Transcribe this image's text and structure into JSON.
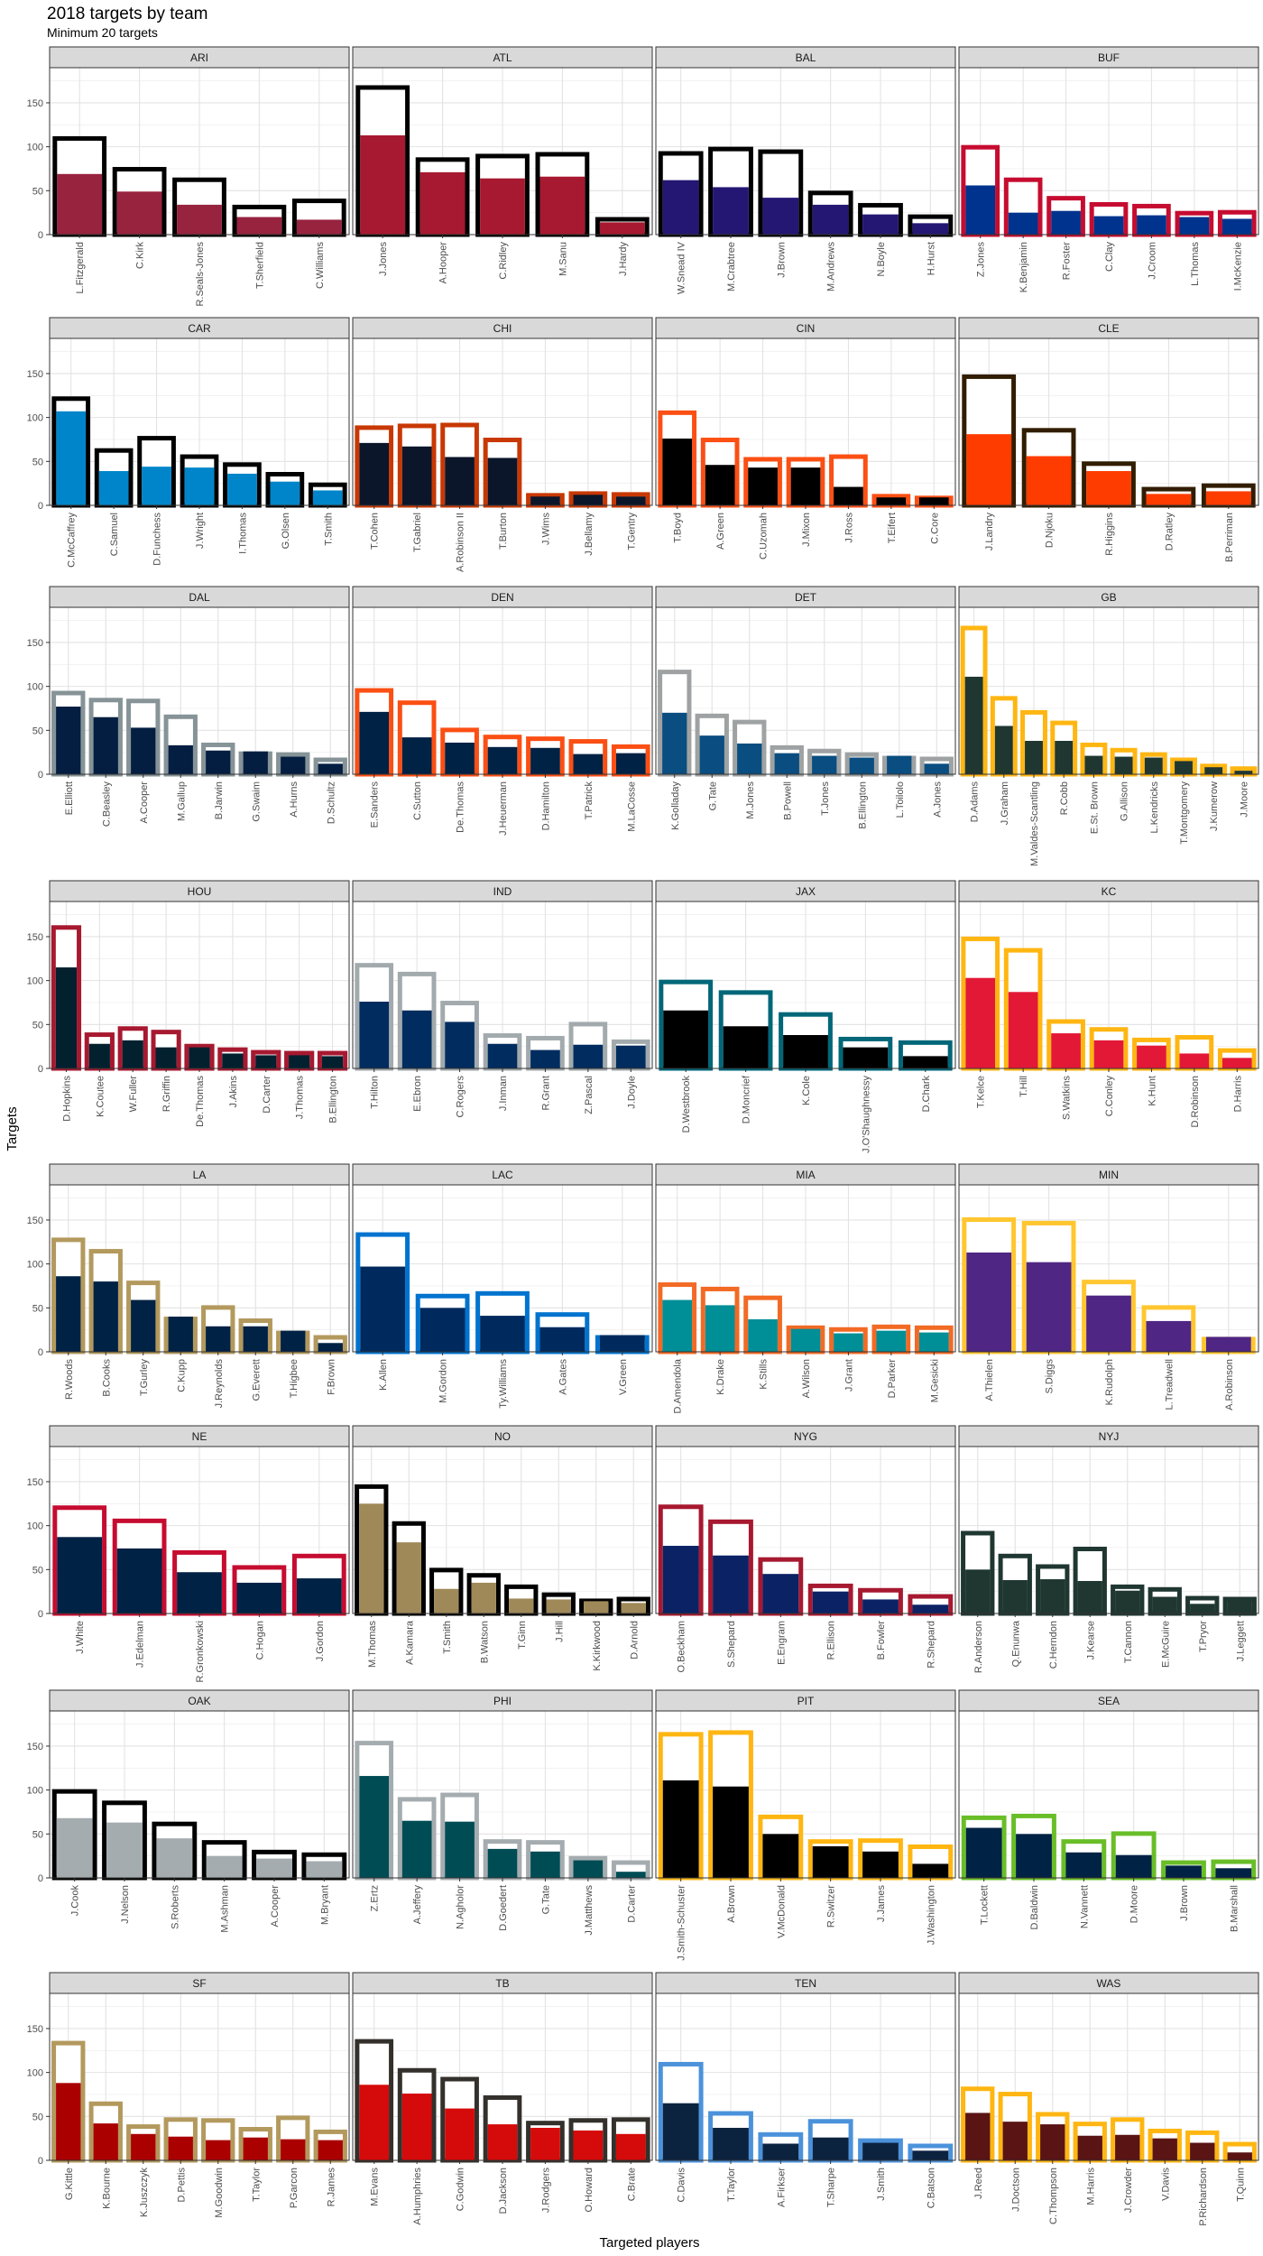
{
  "title": "2018 targets by team",
  "subtitle": "Minimum 20 targets",
  "xlabel": "Targeted players",
  "ylabel": "Targets",
  "chart_data": {
    "type": "bar",
    "description_of_encoding": "Faceted grouped bars per team. Outer outlined bar = total targets; inner filled bar = completed (receptions).",
    "ylim": [
      0,
      190
    ],
    "yticks": [
      0,
      50,
      100,
      150
    ],
    "grid": true,
    "panels": [
      {
        "team": "ARI",
        "fill": "#97233F",
        "outline": "#000000",
        "players": [
          "L.Fitzgerald",
          "C.Kirk",
          "R.Seals-Jones",
          "T.Sherfield",
          "C.Williams"
        ],
        "targets": [
          112,
          77,
          65,
          34,
          41
        ],
        "receptions": [
          69,
          49,
          34,
          20,
          17
        ]
      },
      {
        "team": "ATL",
        "fill": "#A71930",
        "outline": "#000000",
        "players": [
          "J.Jones",
          "A.Hooper",
          "C.Ridley",
          "M.Sanu",
          "J.Hardy"
        ],
        "targets": [
          170,
          88,
          92,
          94,
          20
        ],
        "receptions": [
          113,
          71,
          64,
          66,
          14
        ]
      },
      {
        "team": "BAL",
        "fill": "#241773",
        "outline": "#000000",
        "players": [
          "W.Snead IV",
          "M.Crabtree",
          "J.Brown",
          "M.Andrews",
          "N.Boyle",
          "H.Hurst"
        ],
        "targets": [
          95,
          100,
          97,
          50,
          36,
          23
        ],
        "receptions": [
          62,
          54,
          42,
          34,
          23,
          13
        ]
      },
      {
        "team": "BUF",
        "fill": "#00338D",
        "outline": "#C60C30",
        "players": [
          "Z.Jones",
          "K.Benjamin",
          "R.Foster",
          "C.Clay",
          "J.Croom",
          "L.Thomas",
          "I.McKenzie"
        ],
        "targets": [
          102,
          65,
          44,
          37,
          35,
          27,
          28
        ],
        "receptions": [
          56,
          25,
          27,
          21,
          22,
          20,
          18
        ]
      },
      {
        "team": "CAR",
        "fill": "#0085CA",
        "outline": "#000000",
        "players": [
          "C.McCaffrey",
          "C.Samuel",
          "D.Funchess",
          "J.Wright",
          "I.Thomas",
          "G.Olsen",
          "T.Smith"
        ],
        "targets": [
          124,
          65,
          79,
          58,
          49,
          38,
          26
        ],
        "receptions": [
          107,
          39,
          44,
          43,
          36,
          27,
          17
        ]
      },
      {
        "team": "CHI",
        "fill": "#0B162A",
        "outline": "#C83803",
        "players": [
          "T.Cohen",
          "T.Gabriel",
          "A.Robinson II",
          "T.Burton",
          "J.Wims",
          "J.Bellamy",
          "T.Gentry"
        ],
        "targets": [
          91,
          93,
          94,
          77,
          14,
          16,
          15
        ],
        "receptions": [
          71,
          67,
          55,
          54,
          10,
          12,
          10
        ]
      },
      {
        "team": "CIN",
        "fill": "#000000",
        "outline": "#FB4F14",
        "players": [
          "T.Boyd",
          "A.Green",
          "C.Uzomah",
          "J.Mixon",
          "J.Ross",
          "T.Eifert",
          "C.Core"
        ],
        "targets": [
          108,
          77,
          55,
          55,
          58,
          13,
          11
        ],
        "receptions": [
          76,
          46,
          43,
          43,
          21,
          9,
          9
        ]
      },
      {
        "team": "CLE",
        "fill": "#FF3C00",
        "outline": "#311D00",
        "players": [
          "J.Landry",
          "D.Njoku",
          "R.Higgins",
          "D.Ratley",
          "B.Perriman"
        ],
        "targets": [
          149,
          88,
          50,
          21,
          25
        ],
        "receptions": [
          81,
          56,
          39,
          13,
          16
        ]
      },
      {
        "team": "DAL",
        "fill": "#041E42",
        "outline": "#869397",
        "players": [
          "E.Elliott",
          "C.Beasley",
          "A.Cooper",
          "M.Gallup",
          "B.Jarwin",
          "G.Swaim",
          "A.Hurns",
          "D.Schultz"
        ],
        "targets": [
          95,
          87,
          86,
          68,
          36,
          26,
          25,
          19
        ],
        "receptions": [
          77,
          65,
          53,
          33,
          27,
          26,
          20,
          12
        ]
      },
      {
        "team": "DEN",
        "fill": "#002244",
        "outline": "#FB4F14",
        "players": [
          "E.Sanders",
          "C.Sutton",
          "De.Thomas",
          "J.Heuerman",
          "D.Hamilton",
          "T.Patrick",
          "M.LaCosse"
        ],
        "targets": [
          98,
          84,
          53,
          45,
          43,
          40,
          34
        ],
        "receptions": [
          71,
          42,
          36,
          31,
          30,
          23,
          24
        ]
      },
      {
        "team": "DET",
        "fill": "#0A4D80",
        "outline": "#9EA2A2",
        "players": [
          "K.Golladay",
          "G.Tate",
          "M.Jones",
          "B.Powell",
          "T.Jones",
          "B.Ellington",
          "L.Toilolo",
          "A.Jones"
        ],
        "targets": [
          119,
          69,
          62,
          33,
          29,
          25,
          21,
          20
        ],
        "receptions": [
          70,
          44,
          35,
          24,
          21,
          19,
          21,
          12
        ]
      },
      {
        "team": "GB",
        "fill": "#203731",
        "outline": "#FFB612",
        "players": [
          "D.Adams",
          "J.Graham",
          "M.Valdes-Scantling",
          "R.Cobb",
          "E.St. Brown",
          "G.Allison",
          "L.Kendricks",
          "T.Montgomery",
          "J.Kumerow",
          "J.Moore"
        ],
        "targets": [
          169,
          89,
          73,
          61,
          36,
          30,
          25,
          19,
          12,
          9
        ],
        "receptions": [
          111,
          55,
          38,
          38,
          21,
          20,
          19,
          15,
          8,
          4
        ]
      },
      {
        "team": "HOU",
        "fill": "#03202F",
        "outline": "#A71930",
        "players": [
          "D.Hopkins",
          "K.Coutee",
          "W.Fuller",
          "R.Griffin",
          "De.Thomas",
          "J.Akins",
          "D.Carter",
          "J.Thomas",
          "B.Ellington"
        ],
        "targets": [
          163,
          41,
          48,
          44,
          28,
          24,
          21,
          20,
          20
        ],
        "receptions": [
          115,
          28,
          32,
          24,
          24,
          17,
          15,
          15,
          14
        ]
      },
      {
        "team": "IND",
        "fill": "#002C5F",
        "outline": "#A2AAAD",
        "players": [
          "T.Hilton",
          "E.Ebron",
          "C.Rogers",
          "J.Inman",
          "R.Grant",
          "Z.Pascal",
          "J.Doyle"
        ],
        "targets": [
          120,
          110,
          77,
          40,
          37,
          53,
          33
        ],
        "receptions": [
          76,
          66,
          53,
          28,
          21,
          27,
          26
        ]
      },
      {
        "team": "JAX",
        "fill": "#000000",
        "outline": "#006778",
        "players": [
          "D.Westbrook",
          "D.Moncrief",
          "K.Cole",
          "J.O'Shaughnessy",
          "D.Chark"
        ],
        "targets": [
          101,
          89,
          64,
          36,
          32
        ],
        "receptions": [
          66,
          48,
          38,
          24,
          14
        ]
      },
      {
        "team": "KC",
        "fill": "#E31837",
        "outline": "#FFB612",
        "players": [
          "T.Kelce",
          "T.Hill",
          "S.Watkins",
          "C.Conley",
          "K.Hunt",
          "D.Robinson",
          "D.Harris"
        ],
        "targets": [
          150,
          137,
          56,
          47,
          35,
          38,
          23
        ],
        "receptions": [
          103,
          87,
          40,
          32,
          26,
          17,
          12
        ]
      },
      {
        "team": "LA",
        "fill": "#002244",
        "outline": "#B3995D",
        "players": [
          "R.Woods",
          "B.Cooks",
          "T.Gurley",
          "C.Kupp",
          "J.Reynolds",
          "G.Everett",
          "T.Higbee",
          "F.Brown"
        ],
        "targets": [
          130,
          117,
          81,
          40,
          53,
          38,
          24,
          19
        ],
        "receptions": [
          86,
          80,
          59,
          40,
          29,
          29,
          24,
          10
        ]
      },
      {
        "team": "LAC",
        "fill": "#002A5E",
        "outline": "#0073CF",
        "players": [
          "K.Allen",
          "M.Gordon",
          "Ty.Williams",
          "A.Gates",
          "V.Green"
        ],
        "targets": [
          136,
          66,
          69,
          45,
          19
        ],
        "receptions": [
          97,
          50,
          41,
          28,
          19
        ]
      },
      {
        "team": "MIA",
        "fill": "#008E97",
        "outline": "#F26A24",
        "players": [
          "D.Amendola",
          "K.Drake",
          "K.Stills",
          "A.Wilson",
          "J.Grant",
          "D.Parker",
          "M.Gesicki"
        ],
        "targets": [
          79,
          74,
          64,
          30,
          28,
          31,
          30
        ],
        "receptions": [
          59,
          53,
          37,
          26,
          21,
          24,
          22
        ]
      },
      {
        "team": "MIN",
        "fill": "#4F2683",
        "outline": "#FFC62F",
        "players": [
          "A.Thielen",
          "S.Diggs",
          "K.Rudolph",
          "L.Treadwell",
          "A.Robinson"
        ],
        "targets": [
          153,
          149,
          82,
          53,
          17
        ],
        "receptions": [
          113,
          102,
          64,
          35,
          17
        ]
      },
      {
        "team": "NE",
        "fill": "#002244",
        "outline": "#C60C30",
        "players": [
          "J.White",
          "J.Edelman",
          "R.Gronkowski",
          "C.Hogan",
          "J.Gordon"
        ],
        "targets": [
          123,
          108,
          72,
          55,
          68
        ],
        "receptions": [
          87,
          74,
          47,
          35,
          40
        ]
      },
      {
        "team": "NO",
        "fill": "#9F8958",
        "outline": "#000000",
        "players": [
          "M.Thomas",
          "A.Kamara",
          "T.Smith",
          "B.Watson",
          "T.Ginn",
          "J.Hill",
          "K.Kirkwood",
          "D.Arnold"
        ],
        "targets": [
          147,
          105,
          52,
          46,
          33,
          24,
          17,
          19
        ],
        "receptions": [
          125,
          81,
          28,
          35,
          17,
          16,
          14,
          12
        ]
      },
      {
        "team": "NYG",
        "fill": "#0B2265",
        "outline": "#A71930",
        "players": [
          "O.Beckham",
          "S.Shepard",
          "E.Engram",
          "R.Ellison",
          "B.Fowler",
          "R.Shepard"
        ],
        "targets": [
          124,
          107,
          64,
          34,
          29,
          22
        ],
        "receptions": [
          77,
          66,
          45,
          25,
          16,
          10
        ]
      },
      {
        "team": "NYJ",
        "fill": "#203731",
        "outline": "#203731",
        "players": [
          "R.Anderson",
          "Q.Enunwa",
          "C.Herndon",
          "J.Kearse",
          "T.Cannon",
          "E.McGuire",
          "T.Pryor",
          "J.Leggett"
        ],
        "targets": [
          94,
          68,
          56,
          76,
          33,
          30,
          20,
          19
        ],
        "receptions": [
          50,
          38,
          39,
          37,
          26,
          19,
          11,
          14
        ]
      },
      {
        "team": "OAK",
        "fill": "#A5ACAF",
        "outline": "#000000",
        "players": [
          "J.Cook",
          "J.Nelson",
          "S.Roberts",
          "M.Ashman",
          "A.Cooper",
          "M.Bryant"
        ],
        "targets": [
          101,
          88,
          64,
          43,
          32,
          29
        ],
        "receptions": [
          68,
          63,
          45,
          25,
          22,
          19
        ]
      },
      {
        "team": "PHI",
        "fill": "#004C54",
        "outline": "#A5ACAF",
        "players": [
          "Z.Ertz",
          "A.Jeffery",
          "N.Agholor",
          "D.Goedert",
          "G.Tate",
          "J.Matthews",
          "D.Carter"
        ],
        "targets": [
          156,
          92,
          97,
          44,
          43,
          25,
          20
        ],
        "receptions": [
          116,
          65,
          64,
          33,
          30,
          20,
          7
        ]
      },
      {
        "team": "PIT",
        "fill": "#000000",
        "outline": "#FFB612",
        "players": [
          "J.Smith-Schuster",
          "A.Brown",
          "V.McDonald",
          "R.Switzer",
          "J.James",
          "J.Washington"
        ],
        "targets": [
          166,
          168,
          72,
          44,
          45,
          38
        ],
        "receptions": [
          111,
          104,
          50,
          36,
          30,
          16
        ]
      },
      {
        "team": "SEA",
        "fill": "#002244",
        "outline": "#69BE28",
        "players": [
          "T.Lockett",
          "D.Baldwin",
          "N.Vannett",
          "D.Moore",
          "J.Brown",
          "B.Marshall"
        ],
        "targets": [
          71,
          73,
          44,
          53,
          20,
          21
        ],
        "receptions": [
          57,
          50,
          29,
          26,
          14,
          11
        ]
      },
      {
        "team": "SF",
        "fill": "#AA0000",
        "outline": "#B3995D",
        "players": [
          "G.Kittle",
          "K.Bourne",
          "K.Juszczyk",
          "D.Pettis",
          "M.Goodwin",
          "T.Taylor",
          "P.Garcon",
          "R.James"
        ],
        "targets": [
          136,
          67,
          41,
          49,
          48,
          38,
          51,
          35
        ],
        "receptions": [
          88,
          42,
          30,
          27,
          23,
          26,
          24,
          23
        ]
      },
      {
        "team": "TB",
        "fill": "#D50A0A",
        "outline": "#34302B",
        "players": [
          "M.Evans",
          "A.Humphries",
          "C.Godwin",
          "D.Jackson",
          "J.Rodgers",
          "O.Howard",
          "C.Brate"
        ],
        "targets": [
          138,
          105,
          95,
          74,
          45,
          48,
          49
        ],
        "receptions": [
          86,
          76,
          59,
          41,
          37,
          34,
          30
        ]
      },
      {
        "team": "TEN",
        "fill": "#0C2340",
        "outline": "#4B92DB",
        "players": [
          "C.Davis",
          "T.Taylor",
          "A.Firkser",
          "T.Sharpe",
          "J.Smith",
          "C.Batson"
        ],
        "targets": [
          112,
          56,
          32,
          47,
          25,
          19
        ],
        "receptions": [
          65,
          37,
          19,
          26,
          20,
          11
        ]
      },
      {
        "team": "WAS",
        "fill": "#5A1414",
        "outline": "#FFB612",
        "players": [
          "J.Reed",
          "J.Doctson",
          "C.Thompson",
          "M.Harris",
          "J.Crowder",
          "V.Davis",
          "P.Richardson",
          "T.Quinn"
        ],
        "targets": [
          84,
          78,
          55,
          44,
          49,
          36,
          34,
          21
        ],
        "receptions": [
          54,
          44,
          41,
          28,
          29,
          25,
          20,
          9
        ]
      }
    ]
  }
}
